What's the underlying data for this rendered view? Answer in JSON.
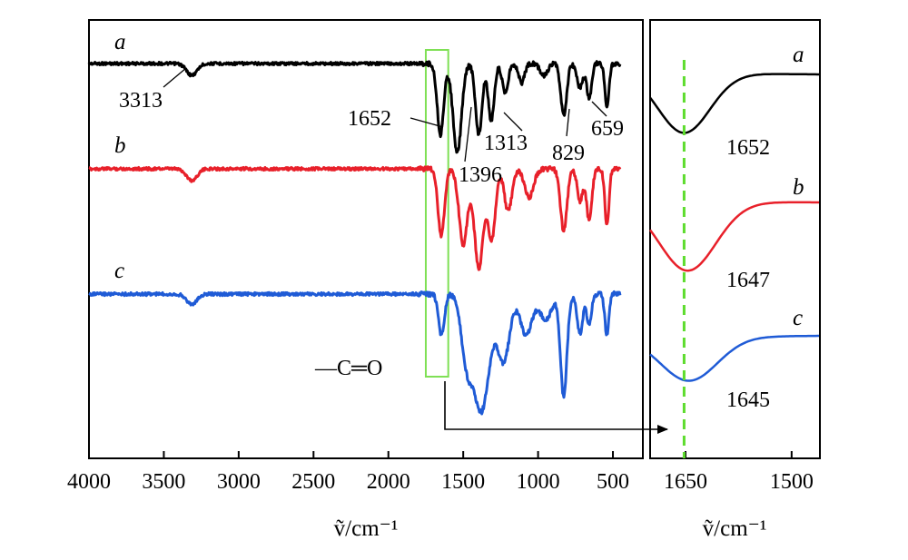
{
  "chart_data": [
    {
      "type": "line",
      "title": "",
      "xlabel": "ṽ/cm⁻¹",
      "ylabel": "",
      "xlim": [
        4000,
        300
      ],
      "x_reversed": true,
      "x_ticks": [
        4000,
        3500,
        3000,
        2500,
        2000,
        1500,
        1000,
        500
      ],
      "grid": false,
      "series": [
        {
          "name": "a",
          "color": "#000000",
          "offset": 0,
          "peaks": [
            {
              "x": 3313,
              "depth": 0.05,
              "width": 35
            },
            {
              "x": 1652,
              "depth": 0.3,
              "width": 22
            },
            {
              "x": 1540,
              "depth": 0.38,
              "width": 28
            },
            {
              "x": 1396,
              "depth": 0.3,
              "width": 22
            },
            {
              "x": 1313,
              "depth": 0.24,
              "width": 20
            },
            {
              "x": 1220,
              "depth": 0.12,
              "width": 20
            },
            {
              "x": 1110,
              "depth": 0.08,
              "width": 20
            },
            {
              "x": 960,
              "depth": 0.05,
              "width": 25
            },
            {
              "x": 829,
              "depth": 0.22,
              "width": 20
            },
            {
              "x": 720,
              "depth": 0.1,
              "width": 20
            },
            {
              "x": 659,
              "depth": 0.15,
              "width": 16
            },
            {
              "x": 540,
              "depth": 0.18,
              "width": 14
            }
          ]
        },
        {
          "name": "b",
          "color": "#e8202a",
          "offset": 0.5,
          "peaks": [
            {
              "x": 3313,
              "depth": 0.05,
              "width": 35
            },
            {
              "x": 1647,
              "depth": 0.28,
              "width": 22
            },
            {
              "x": 1500,
              "depth": 0.32,
              "width": 28
            },
            {
              "x": 1396,
              "depth": 0.42,
              "width": 30
            },
            {
              "x": 1310,
              "depth": 0.3,
              "width": 25
            },
            {
              "x": 1200,
              "depth": 0.18,
              "width": 25
            },
            {
              "x": 1060,
              "depth": 0.12,
              "width": 30
            },
            {
              "x": 829,
              "depth": 0.26,
              "width": 22
            },
            {
              "x": 720,
              "depth": 0.14,
              "width": 18
            },
            {
              "x": 659,
              "depth": 0.22,
              "width": 18
            },
            {
              "x": 540,
              "depth": 0.24,
              "width": 14
            }
          ]
        },
        {
          "name": "c",
          "color": "#1f5bd6",
          "offset": 1.0,
          "peaks": [
            {
              "x": 3313,
              "depth": 0.04,
              "width": 35
            },
            {
              "x": 1645,
              "depth": 0.16,
              "width": 20
            },
            {
              "x": 1480,
              "depth": 0.22,
              "width": 35
            },
            {
              "x": 1380,
              "depth": 0.46,
              "width": 55
            },
            {
              "x": 1230,
              "depth": 0.26,
              "width": 40
            },
            {
              "x": 1080,
              "depth": 0.16,
              "width": 40
            },
            {
              "x": 950,
              "depth": 0.1,
              "width": 40
            },
            {
              "x": 829,
              "depth": 0.4,
              "width": 22
            },
            {
              "x": 720,
              "depth": 0.16,
              "width": 18
            },
            {
              "x": 659,
              "depth": 0.12,
              "width": 16
            },
            {
              "x": 540,
              "depth": 0.16,
              "width": 14
            }
          ]
        }
      ],
      "annotations": [
        "3313",
        "1652",
        "1396",
        "1313",
        "829",
        "659",
        "—C═O"
      ]
    },
    {
      "type": "line",
      "title": "",
      "xlabel": "ṽ/cm⁻¹",
      "ylabel": "",
      "xlim": [
        1700,
        1460
      ],
      "x_reversed": true,
      "x_ticks": [
        1650,
        1500
      ],
      "reference_line": {
        "x": 1652,
        "color": "#5ddc2e",
        "style": "dashed"
      },
      "series": [
        {
          "name": "a",
          "color": "#000000",
          "minimum": 1652
        },
        {
          "name": "b",
          "color": "#e8202a",
          "minimum": 1647
        },
        {
          "name": "c",
          "color": "#1f5bd6",
          "minimum": 1645
        }
      ]
    }
  ],
  "highlight_box": {
    "x_from": 1750,
    "x_to": 1600,
    "color": "#7fe055",
    "note": "zoomed region"
  }
}
